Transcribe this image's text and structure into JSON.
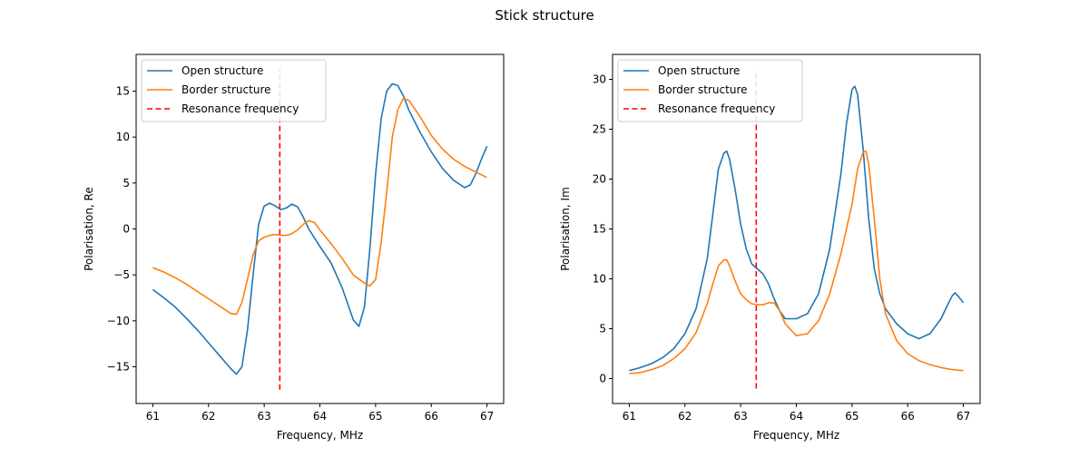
{
  "figure": {
    "title": "Stick structure"
  },
  "chart_data": [
    {
      "type": "line",
      "title": "",
      "xlabel": "Frequency, MHz",
      "ylabel": "Polarisation, Re",
      "xlim": [
        60.7,
        67.3
      ],
      "ylim": [
        -19.0,
        19.0
      ],
      "xticks": [
        61,
        62,
        63,
        64,
        65,
        66,
        67
      ],
      "yticks": [
        -15,
        -10,
        -5,
        0,
        5,
        10,
        15
      ],
      "legend": {
        "location": "upper-left",
        "entries": [
          "Open structure",
          "Border structure",
          "Resonance frequency"
        ]
      },
      "resonance": {
        "x": 63.28,
        "y_range": [
          -17.5,
          17.5
        ]
      },
      "series": [
        {
          "name": "Open structure",
          "color": "#1f77b4",
          "x": [
            61.0,
            61.2,
            61.4,
            61.6,
            61.8,
            62.0,
            62.2,
            62.4,
            62.5,
            62.6,
            62.7,
            62.8,
            62.9,
            63.0,
            63.1,
            63.2,
            63.3,
            63.4,
            63.5,
            63.6,
            63.7,
            63.8,
            64.0,
            64.2,
            64.4,
            64.6,
            64.7,
            64.8,
            64.9,
            65.0,
            65.1,
            65.2,
            65.3,
            65.4,
            65.5,
            65.6,
            65.8,
            66.0,
            66.2,
            66.4,
            66.6,
            66.7,
            66.8,
            66.9,
            67.0
          ],
          "y": [
            -6.6,
            -7.5,
            -8.5,
            -9.7,
            -11.0,
            -12.4,
            -13.8,
            -15.2,
            -15.8,
            -15.0,
            -11.0,
            -5.0,
            0.5,
            2.5,
            2.8,
            2.5,
            2.1,
            2.3,
            2.7,
            2.4,
            1.3,
            0.0,
            -1.9,
            -3.7,
            -6.4,
            -9.9,
            -10.6,
            -8.5,
            -2.0,
            6.0,
            12.0,
            15.0,
            15.8,
            15.6,
            14.5,
            12.9,
            10.5,
            8.4,
            6.6,
            5.3,
            4.5,
            4.8,
            6.0,
            7.6,
            9.0
          ]
        },
        {
          "name": "Border structure",
          "color": "#ff7f0e",
          "x": [
            61.0,
            61.2,
            61.4,
            61.6,
            61.8,
            62.0,
            62.2,
            62.4,
            62.5,
            62.6,
            62.7,
            62.8,
            62.9,
            63.0,
            63.1,
            63.2,
            63.3,
            63.4,
            63.5,
            63.6,
            63.7,
            63.8,
            63.9,
            64.0,
            64.2,
            64.4,
            64.6,
            64.8,
            64.9,
            65.0,
            65.1,
            65.2,
            65.3,
            65.4,
            65.5,
            65.6,
            65.8,
            66.0,
            66.2,
            66.4,
            66.6,
            66.8,
            67.0
          ],
          "y": [
            -4.2,
            -4.7,
            -5.3,
            -6.0,
            -6.8,
            -7.6,
            -8.4,
            -9.2,
            -9.3,
            -8.0,
            -5.5,
            -2.8,
            -1.3,
            -0.9,
            -0.7,
            -0.6,
            -0.7,
            -0.7,
            -0.5,
            -0.1,
            0.5,
            0.9,
            0.7,
            -0.1,
            -1.6,
            -3.2,
            -5.0,
            -5.9,
            -6.2,
            -5.5,
            -1.5,
            4.0,
            10.0,
            13.0,
            14.2,
            14.0,
            12.2,
            10.2,
            8.7,
            7.6,
            6.8,
            6.2,
            5.6
          ]
        }
      ]
    },
    {
      "type": "line",
      "title": "",
      "xlabel": "Frequency, MHz",
      "ylabel": "Polarisation, Im",
      "xlim": [
        60.7,
        67.3
      ],
      "ylim": [
        -2.5,
        32.5
      ],
      "xticks": [
        61,
        62,
        63,
        64,
        65,
        66,
        67
      ],
      "yticks": [
        0,
        5,
        10,
        15,
        20,
        25,
        30
      ],
      "legend": {
        "location": "upper-left",
        "entries": [
          "Open structure",
          "Border structure",
          "Resonance frequency"
        ]
      },
      "resonance": {
        "x": 63.28,
        "y_range": [
          -1.0,
          31.0
        ]
      },
      "series": [
        {
          "name": "Open structure",
          "color": "#1f77b4",
          "x": [
            61.0,
            61.2,
            61.4,
            61.6,
            61.8,
            62.0,
            62.2,
            62.4,
            62.5,
            62.6,
            62.7,
            62.75,
            62.8,
            62.9,
            63.0,
            63.1,
            63.2,
            63.3,
            63.4,
            63.5,
            63.6,
            63.7,
            63.8,
            64.0,
            64.2,
            64.4,
            64.6,
            64.8,
            64.9,
            65.0,
            65.05,
            65.1,
            65.2,
            65.3,
            65.4,
            65.5,
            65.6,
            65.8,
            66.0,
            66.2,
            66.4,
            66.6,
            66.7,
            66.8,
            66.85,
            66.9,
            67.0
          ],
          "y": [
            0.8,
            1.1,
            1.5,
            2.1,
            3.0,
            4.5,
            7.0,
            12.0,
            16.5,
            21.0,
            22.6,
            22.8,
            22.0,
            19.0,
            15.5,
            13.0,
            11.5,
            11.0,
            10.5,
            9.5,
            8.0,
            6.8,
            6.0,
            6.0,
            6.5,
            8.5,
            13.0,
            20.5,
            25.5,
            29.0,
            29.3,
            28.5,
            23.0,
            16.0,
            11.0,
            8.5,
            7.0,
            5.5,
            4.5,
            4.0,
            4.5,
            6.0,
            7.2,
            8.3,
            8.6,
            8.3,
            7.6
          ]
        },
        {
          "name": "Border structure",
          "color": "#ff7f0e",
          "x": [
            61.0,
            61.2,
            61.4,
            61.6,
            61.8,
            62.0,
            62.2,
            62.4,
            62.5,
            62.6,
            62.7,
            62.75,
            62.8,
            62.9,
            63.0,
            63.1,
            63.2,
            63.3,
            63.4,
            63.5,
            63.6,
            63.7,
            63.8,
            64.0,
            64.2,
            64.4,
            64.6,
            64.8,
            65.0,
            65.1,
            65.2,
            65.25,
            65.3,
            65.4,
            65.5,
            65.6,
            65.8,
            66.0,
            66.2,
            66.4,
            66.6,
            66.8,
            67.0
          ],
          "y": [
            0.5,
            0.6,
            0.9,
            1.3,
            2.0,
            3.0,
            4.6,
            7.5,
            9.5,
            11.3,
            11.9,
            11.9,
            11.3,
            9.8,
            8.5,
            7.9,
            7.5,
            7.4,
            7.4,
            7.6,
            7.6,
            6.8,
            5.5,
            4.3,
            4.5,
            5.8,
            8.5,
            12.5,
            17.5,
            21.0,
            22.7,
            22.8,
            21.5,
            16.0,
            10.0,
            6.5,
            3.8,
            2.5,
            1.8,
            1.4,
            1.1,
            0.9,
            0.8
          ]
        }
      ]
    }
  ]
}
